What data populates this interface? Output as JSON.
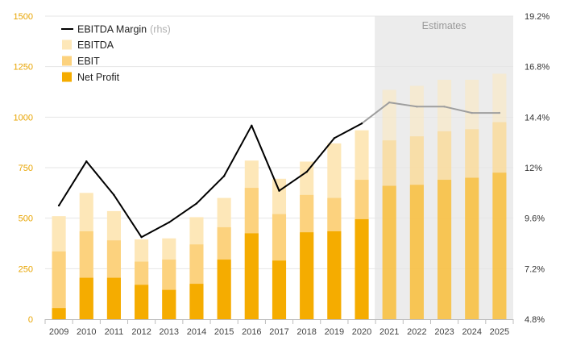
{
  "colors": {
    "ebitda": "#fde7b8",
    "ebit": "#fcd27e",
    "net_profit": "#f5ac00",
    "margin_line_actual": "#000000",
    "margin_line_estimate": "#9e9e9e",
    "estimates_shade": "#ececec",
    "left_axis_text": "#e8a400",
    "grid": "#e6e6e6"
  },
  "chart_data": {
    "type": "bar",
    "stacked": true,
    "categories": [
      "2009",
      "2010",
      "2011",
      "2012",
      "2013",
      "2014",
      "2015",
      "2016",
      "2017",
      "2018",
      "2019",
      "2020",
      "2021",
      "2022",
      "2023",
      "2024",
      "2025"
    ],
    "series": [
      {
        "name": "EBITDA",
        "values": [
          510,
          625,
          535,
          395,
          400,
          505,
          600,
          785,
          695,
          780,
          870,
          935,
          1135,
          1155,
          1185,
          1185,
          1215
        ]
      },
      {
        "name": "EBIT",
        "values": [
          335,
          435,
          390,
          285,
          295,
          370,
          455,
          650,
          520,
          615,
          600,
          690,
          885,
          905,
          930,
          940,
          975
        ]
      },
      {
        "name": "Net Profit",
        "values": [
          55,
          205,
          205,
          170,
          145,
          175,
          295,
          425,
          290,
          430,
          435,
          495,
          660,
          665,
          690,
          700,
          725
        ]
      }
    ],
    "line_series": {
      "name": "EBITDA Margin",
      "name_suffix": "(rhs)",
      "axis": "right",
      "values": [
        10.2,
        12.3,
        10.7,
        8.7,
        9.4,
        10.3,
        11.6,
        14.0,
        10.9,
        11.8,
        13.4,
        14.1,
        15.1,
        14.9,
        14.9,
        14.6,
        14.6
      ]
    },
    "estimates": {
      "label": "Estimates",
      "from": "2021",
      "to": "2025"
    },
    "ylim_left": [
      0,
      1500
    ],
    "yticks_left": [
      "0",
      "250",
      "500",
      "750",
      "1000",
      "1250",
      "1500"
    ],
    "ylim_right": [
      4.8,
      19.2
    ],
    "yticks_right": [
      "4.8%",
      "7.2%",
      "9.6%",
      "12%",
      "14.4%",
      "16.8%",
      "19.2%"
    ],
    "legend_position": "top-left",
    "grid": true,
    "title": "",
    "xlabel": "",
    "ylabel": ""
  }
}
